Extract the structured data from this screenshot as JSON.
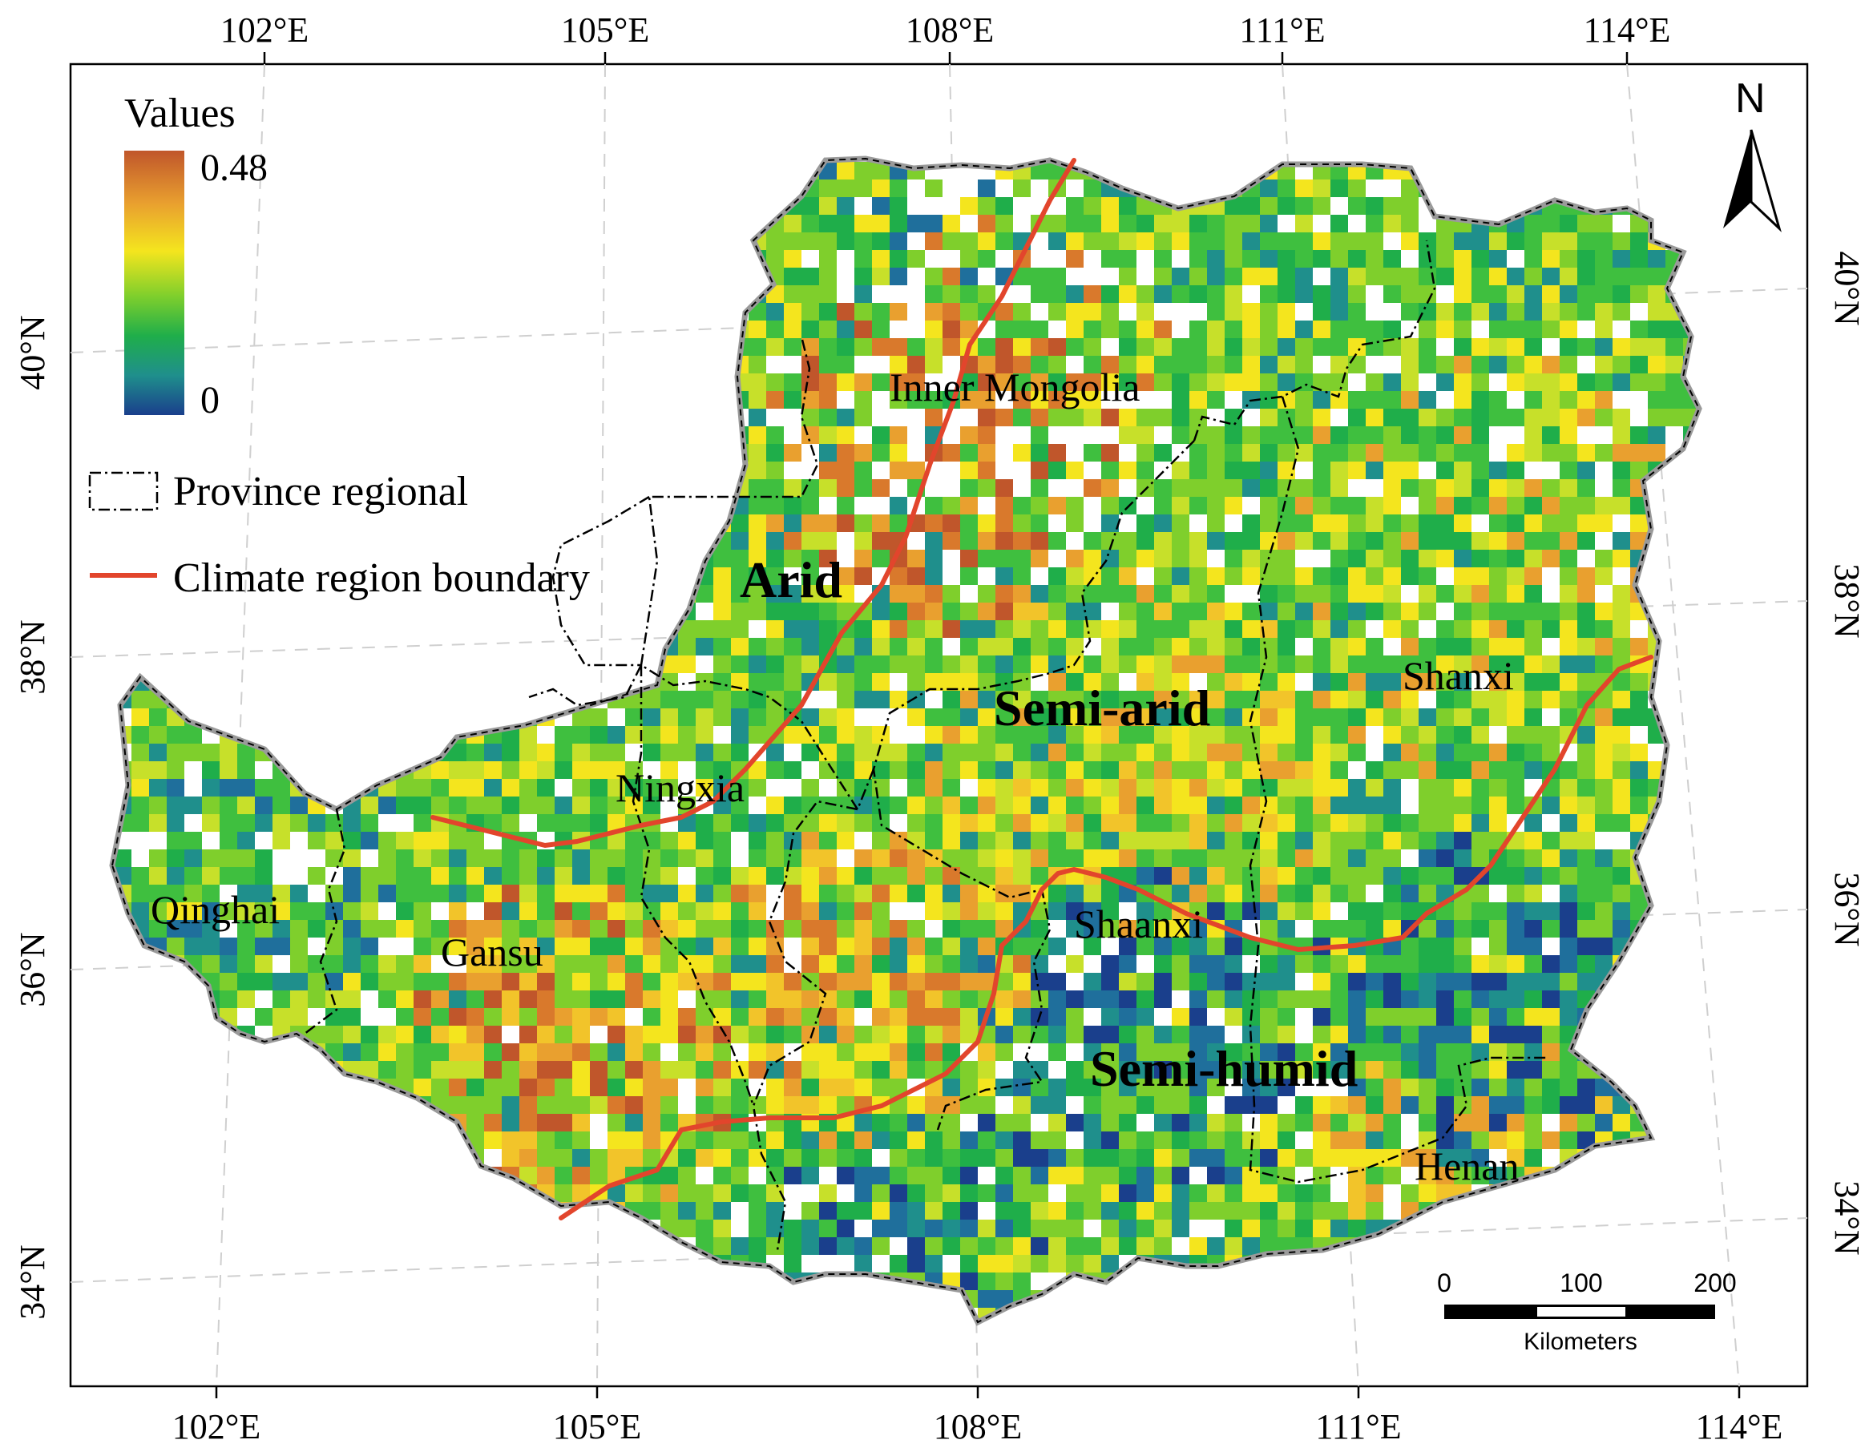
{
  "legend": {
    "title": "Values",
    "max_label": "0.48",
    "min_label": "0",
    "gradient_colors": [
      "#c0562b",
      "#e9a02f",
      "#f4e51e",
      "#7fcf2c",
      "#1fae4a",
      "#1f8f8c",
      "#1a3f8c"
    ],
    "province_label": "Province regional",
    "boundary_label": "Climate region boundary",
    "boundary_color": "#e2452c"
  },
  "axes": {
    "top_lon": [
      "102°E",
      "105°E",
      "108°E",
      "111°E",
      "114°E"
    ],
    "bottom_lon": [
      "102°E",
      "105°E",
      "108°E",
      "111°E",
      "114°E"
    ],
    "left_lat": [
      "40°N",
      "38°N",
      "36°N",
      "34°N"
    ],
    "right_lat": [
      "40°N",
      "38°N",
      "36°N",
      "34°N"
    ]
  },
  "regions": {
    "climate": [
      "Arid",
      "Semi-arid",
      "Semi-humid"
    ],
    "provinces": [
      "Inner Mongolia",
      "Ningxia",
      "Qinghai",
      "Gansu",
      "Shaanxi",
      "Shanxi",
      "Henan"
    ]
  },
  "north_arrow": {
    "label": "N"
  },
  "scale_bar": {
    "ticks": [
      "0",
      "100",
      "200"
    ],
    "unit": "Kilometers"
  }
}
